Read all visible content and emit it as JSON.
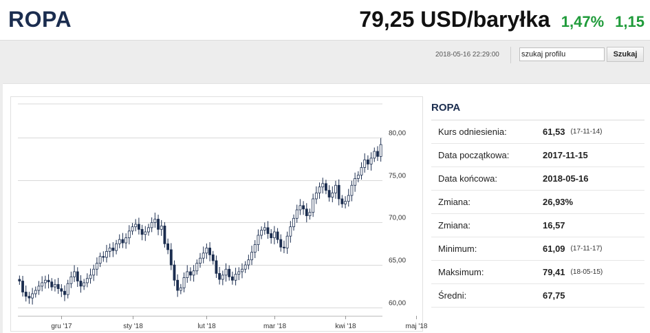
{
  "header": {
    "title": "ROPA",
    "price": "79,25 USD/baryłka",
    "change_pct": "1,47%",
    "change_abs": "1,15",
    "change_color": "#1f9b3a"
  },
  "toolbar": {
    "timestamp": "2018-05-16 22:29:00",
    "search_value": "szukaj profilu",
    "search_button": "Szukaj"
  },
  "info": {
    "title": "ROPA",
    "rows": [
      {
        "label": "Kurs odniesienia:",
        "value": "61,53",
        "note": "(17-11-14)"
      },
      {
        "label": "Data początkowa:",
        "value": "2017-11-15",
        "note": ""
      },
      {
        "label": "Data końcowa:",
        "value": "2018-05-16",
        "note": ""
      },
      {
        "label": "Zmiana:",
        "value": "26,93%",
        "note": ""
      },
      {
        "label": "Zmiana:",
        "value": "16,57",
        "note": ""
      },
      {
        "label": "Minimum:",
        "value": "61,09",
        "note": "(17-11-17)"
      },
      {
        "label": "Maksimum:",
        "value": "79,41",
        "note": "(18-05-15)"
      },
      {
        "label": "Średni:",
        "value": "67,75",
        "note": ""
      }
    ]
  },
  "chart_data": {
    "type": "candlestick",
    "y_ticks": [
      "60,00",
      "65,00",
      "70,00",
      "75,00",
      "80,00"
    ],
    "y_tick_values": [
      60,
      65,
      70,
      75,
      80
    ],
    "ylim": [
      59,
      84
    ],
    "x_tick_labels": [
      "gru '17",
      "sty '18",
      "lut '18",
      "mar '18",
      "kwi '18",
      "maj '18"
    ],
    "x_tick_index": [
      13,
      35,
      58,
      79,
      101,
      123
    ],
    "up_color": "#ffffff",
    "down_color": "#1b2d4f",
    "grid": true,
    "close": [
      63.1,
      61.8,
      61.3,
      61.1,
      61.6,
      62.0,
      62.5,
      62.9,
      63.2,
      63.0,
      62.4,
      62.7,
      62.2,
      61.9,
      61.5,
      62.8,
      63.6,
      64.2,
      63.1,
      62.5,
      62.9,
      63.4,
      63.8,
      64.5,
      65.2,
      66.0,
      65.9,
      66.6,
      67.0,
      66.7,
      67.5,
      68.0,
      67.6,
      68.2,
      69.0,
      69.5,
      69.8,
      69.2,
      68.6,
      68.9,
      69.4,
      70.0,
      70.4,
      69.2,
      69.6,
      67.5,
      66.8,
      65.0,
      63.2,
      62.0,
      62.3,
      63.5,
      64.2,
      63.8,
      64.3,
      65.2,
      65.8,
      66.4,
      67.0,
      66.2,
      65.5,
      64.0,
      63.3,
      63.8,
      64.5,
      63.6,
      63.2,
      63.9,
      64.2,
      64.5,
      65.0,
      65.6,
      66.5,
      67.4,
      68.5,
      69.1,
      69.4,
      68.7,
      68.2,
      68.9,
      68.0,
      67.1,
      67.0,
      68.4,
      69.5,
      70.5,
      71.5,
      72.0,
      71.6,
      70.8,
      71.2,
      72.8,
      73.5,
      74.2,
      74.6,
      73.8,
      73.0,
      73.5,
      74.4,
      72.8,
      72.2,
      72.5,
      73.2,
      74.4,
      75.2,
      75.6,
      76.5,
      77.4,
      76.9,
      77.6,
      78.4,
      77.8,
      79.2
    ],
    "open": [
      63.3,
      63.1,
      61.8,
      61.3,
      61.1,
      61.6,
      62.0,
      62.5,
      62.9,
      63.2,
      63.0,
      62.4,
      62.7,
      62.2,
      61.9,
      61.5,
      62.8,
      63.6,
      64.2,
      63.1,
      62.5,
      62.9,
      63.4,
      63.8,
      64.5,
      65.2,
      66.0,
      65.9,
      66.6,
      67.0,
      66.7,
      67.5,
      68.0,
      67.6,
      68.2,
      69.0,
      69.5,
      69.8,
      69.2,
      68.6,
      68.9,
      69.4,
      70.0,
      70.4,
      69.2,
      69.6,
      67.5,
      66.8,
      65.0,
      63.2,
      62.0,
      62.3,
      63.5,
      64.2,
      63.8,
      64.3,
      65.2,
      65.8,
      66.4,
      67.0,
      66.2,
      65.5,
      64.0,
      63.3,
      63.8,
      64.5,
      63.6,
      63.2,
      63.9,
      64.2,
      64.5,
      65.0,
      65.6,
      66.5,
      67.4,
      68.5,
      69.1,
      69.4,
      68.7,
      68.2,
      68.9,
      68.0,
      67.1,
      67.0,
      68.4,
      69.5,
      70.5,
      71.5,
      72.0,
      71.6,
      70.8,
      71.2,
      72.8,
      73.5,
      74.2,
      74.6,
      73.8,
      73.0,
      73.5,
      74.4,
      72.8,
      72.2,
      72.5,
      73.2,
      74.4,
      75.2,
      75.6,
      76.5,
      77.4,
      76.9,
      77.6,
      78.4,
      77.8
    ]
  }
}
